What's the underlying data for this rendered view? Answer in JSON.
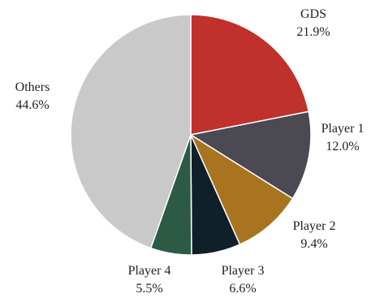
{
  "chart_data": {
    "type": "pie",
    "title": "",
    "start": "top",
    "direction": "clockwise",
    "slices": [
      {
        "label": "GDS",
        "value": 21.9,
        "value_label": "21.9%",
        "color": "#c0312b"
      },
      {
        "label": "Player 1",
        "value": 12.0,
        "value_label": "12.0%",
        "color": "#4b4a52"
      },
      {
        "label": "Player 2",
        "value": 9.4,
        "value_label": "9.4%",
        "color": "#a8741f"
      },
      {
        "label": "Player 3",
        "value": 6.6,
        "value_label": "6.6%",
        "color": "#10202a"
      },
      {
        "label": "Player 4",
        "value": 5.5,
        "value_label": "5.5%",
        "color": "#2d5a45"
      },
      {
        "label": "Others",
        "value": 44.6,
        "value_label": "44.6%",
        "color": "#c9c9c9"
      }
    ]
  }
}
